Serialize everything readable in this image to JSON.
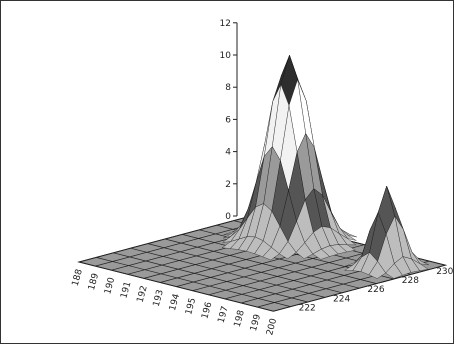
{
  "chart_data": {
    "type": "surface3d",
    "title": "",
    "xlabel": "",
    "ylabel": "",
    "zlabel": "",
    "z_ticks": [
      "0",
      "2",
      "4",
      "6",
      "8",
      "10",
      "12"
    ],
    "x_ticks": [
      "188",
      "189",
      "190",
      "191",
      "192",
      "193",
      "194",
      "195",
      "196",
      "197",
      "198",
      "199",
      "200"
    ],
    "y_ticks": [
      "222",
      "224",
      "226",
      "228",
      "230"
    ],
    "zlim": [
      0,
      12
    ],
    "xlim": [
      188,
      200
    ],
    "ylim": [
      221,
      231
    ],
    "peaks": [
      {
        "x": 192.5,
        "y": 229,
        "z": 11.7
      },
      {
        "x": 198.5,
        "y": 229,
        "z": 5.1
      }
    ],
    "grayscale_bands": [
      "#bdbdbd",
      "#555555",
      "#9a9a9a",
      "#f2f2f2",
      "#ffffff",
      "#2e2e2e"
    ]
  }
}
